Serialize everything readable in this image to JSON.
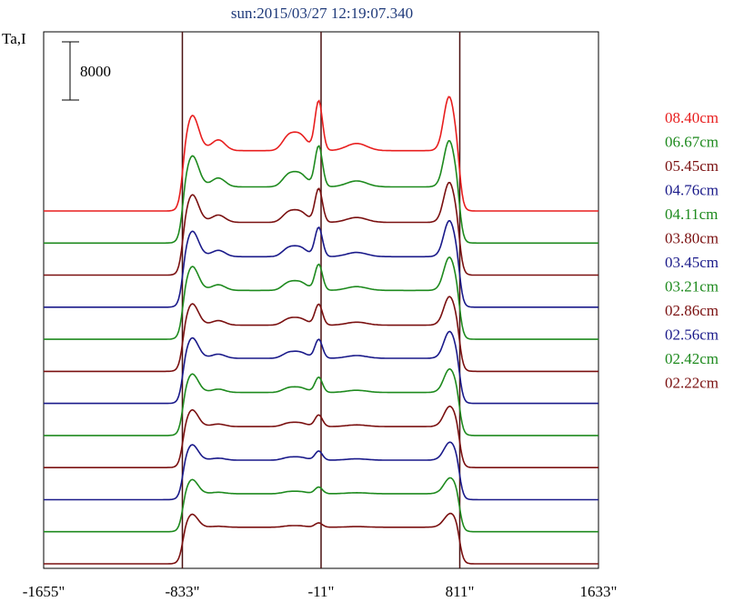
{
  "chart_data": {
    "type": "line",
    "title": "sun:2015/03/27 12:19:07.340",
    "ylabel": "Ta,I",
    "scale_bar": {
      "label": "8000",
      "value": 8000
    },
    "xlim": [
      -1655,
      1633
    ],
    "x_ticks": [
      {
        "value": -1655,
        "label": "-1655\""
      },
      {
        "value": -833,
        "label": "-833\""
      },
      {
        "value": -11,
        "label": "-11\""
      },
      {
        "value": 811,
        "label": "811\""
      },
      {
        "value": 1633,
        "label": "1633\""
      }
    ],
    "reference_lines_x": [
      -833,
      -11,
      811
    ],
    "limb_x": [
      -833,
      811
    ],
    "grid": false,
    "legend_position": "right",
    "series": [
      {
        "name": "08.40cm",
        "color": "#e81e1e",
        "peak_amp": 1.0
      },
      {
        "name": "06.67cm",
        "color": "#1e8a1e",
        "peak_amp": 0.86
      },
      {
        "name": "05.45cm",
        "color": "#7a1010",
        "peak_amp": 0.74
      },
      {
        "name": "04.76cm",
        "color": "#1a1a8a",
        "peak_amp": 0.66
      },
      {
        "name": "04.11cm",
        "color": "#1e8a1e",
        "peak_amp": 0.6
      },
      {
        "name": "03.80cm",
        "color": "#7a1010",
        "peak_amp": 0.5
      },
      {
        "name": "03.45cm",
        "color": "#1a1a8a",
        "peak_amp": 0.46
      },
      {
        "name": "03.21cm",
        "color": "#1e8a1e",
        "peak_amp": 0.38
      },
      {
        "name": "02.86cm",
        "color": "#7a1010",
        "peak_amp": 0.3
      },
      {
        "name": "02.56cm",
        "color": "#1a1a8a",
        "peak_amp": 0.24
      },
      {
        "name": "02.42cm",
        "color": "#1e8a1e",
        "peak_amp": 0.18
      },
      {
        "name": "02.22cm",
        "color": "#7a1010",
        "peak_amp": 0.12
      }
    ]
  }
}
